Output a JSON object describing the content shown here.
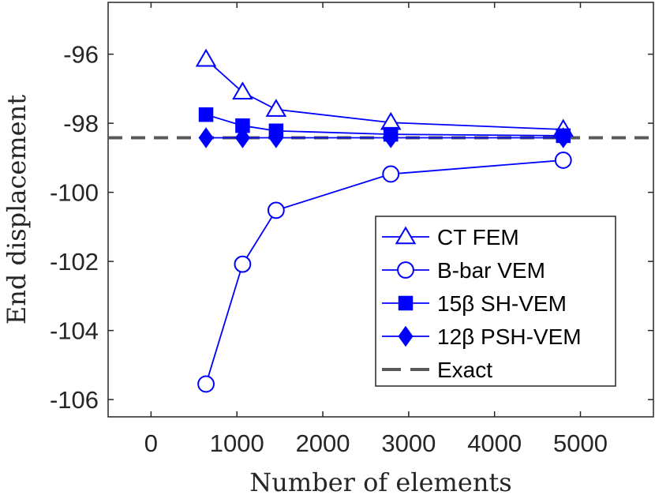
{
  "chart_data": {
    "type": "line",
    "xlabel": "Number of elements",
    "ylabel": "End displacement",
    "xlim": [
      -500,
      5850
    ],
    "ylim": [
      -106.5,
      -94.5
    ],
    "xticks": [
      0,
      1000,
      2000,
      3000,
      4000,
      5000
    ],
    "yticks": [
      -96,
      -98,
      -100,
      -102,
      -104,
      -106
    ],
    "x": [
      640,
      1066,
      1456,
      2792,
      4800
    ],
    "grid": false,
    "legend_position": "bottom-right",
    "colors": {
      "series": "#0000ff",
      "exact": "#595959",
      "axis": "#262626"
    },
    "series": [
      {
        "name": "CT FEM",
        "marker": "triangle",
        "values": [
          -96.15,
          -97.1,
          -97.6,
          -97.98,
          -98.18
        ]
      },
      {
        "name": "B-bar VEM",
        "marker": "circle",
        "values": [
          -105.55,
          -102.08,
          -100.52,
          -99.47,
          -99.07
        ]
      },
      {
        "name": "15β SH-VEM",
        "marker": "square",
        "values": [
          -97.75,
          -98.07,
          -98.22,
          -98.32,
          -98.36
        ]
      },
      {
        "name": "12β PSH-VEM",
        "marker": "diamond",
        "values": [
          -98.42,
          -98.42,
          -98.42,
          -98.42,
          -98.42
        ]
      }
    ],
    "reference": {
      "name": "Exact",
      "value": -98.42,
      "style": "dashed"
    }
  }
}
